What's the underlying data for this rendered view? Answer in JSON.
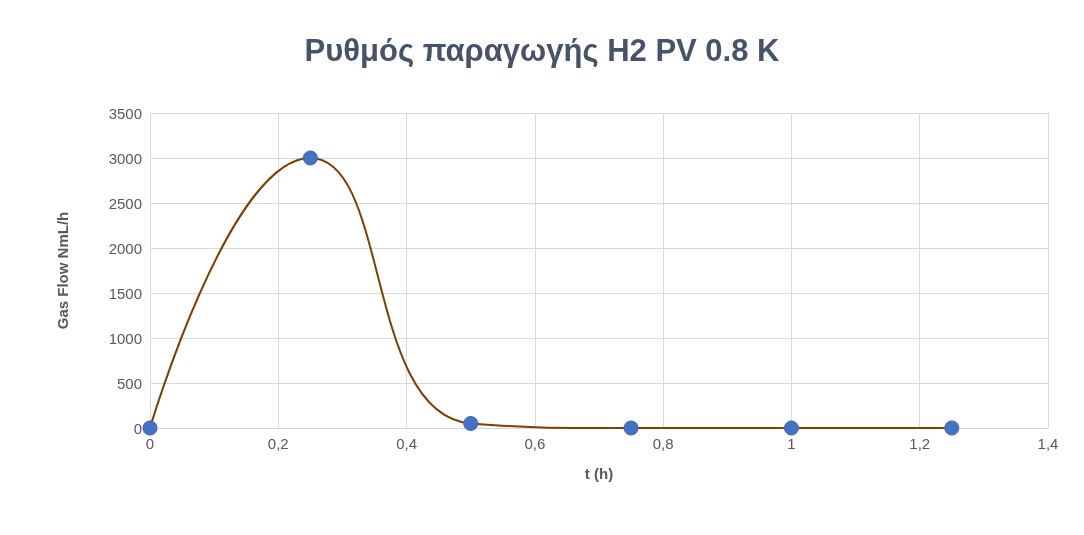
{
  "chart_data": {
    "type": "line",
    "title": "Ρυθμός παραγωγής H2 PV 0.8 K",
    "xlabel": "t (h)",
    "ylabel": "Gas Flow NmL/h",
    "x": [
      0,
      0.25,
      0.5,
      0.75,
      1,
      1.25
    ],
    "series": [
      {
        "color": "#7f3f00",
        "colors": [
          "#4472c4",
          "#4472c4",
          "#4472c4",
          "#4472c4",
          "#4472c4",
          "#4472c4"
        ],
        "values": [
          0,
          3000,
          50,
          0,
          0,
          0
        ]
      }
    ],
    "marker": "circle",
    "line_style": "solid",
    "grid": true,
    "xlim": [
      0,
      1.4
    ],
    "xticks": [
      0,
      {
        "value": 0.2,
        "label": "0,2"
      },
      {
        "value": 0.4,
        "label": "0,4"
      },
      {
        "value": 0.6,
        "label": "0,6"
      },
      {
        "value": 0.8,
        "label": "0,8"
      },
      1,
      {
        "value": 1.2,
        "label": "1,2"
      },
      {
        "value": 1.4,
        "label": "1,4"
      }
    ],
    "ylim": [
      0,
      3500
    ],
    "yticks": [
      0,
      500,
      1000,
      1500,
      2000,
      2500,
      3000,
      3500
    ]
  }
}
